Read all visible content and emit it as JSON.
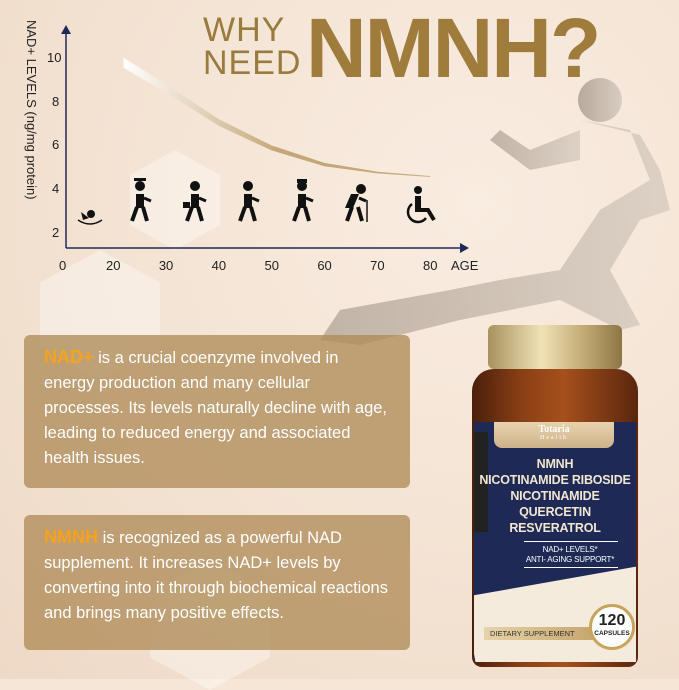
{
  "title": {
    "line1": "WHY",
    "line2": "NEED",
    "highlight": "NMNH?"
  },
  "chart_data": {
    "type": "line",
    "ylabel": "NAD+ LEVELS (ng/mg protein)",
    "xlabel": "AGE",
    "x_ticks": [
      "0",
      "20",
      "30",
      "40",
      "50",
      "60",
      "70",
      "80"
    ],
    "y_ticks": [
      "10",
      "8",
      "6",
      "4",
      "2"
    ],
    "xlim": [
      0,
      80
    ],
    "ylim": [
      1.3,
      11
    ],
    "x": [
      22,
      30,
      40,
      50,
      60,
      70,
      80
    ],
    "y": [
      10,
      8.8,
      7.2,
      6,
      5.2,
      4.8,
      4.6
    ],
    "grid": false,
    "icons": [
      "baby-icon",
      "graduate-icon",
      "businessman-briefcase-icon",
      "businessman-icon",
      "elderly-man-hat-icon",
      "elderly-cane-icon",
      "wheelchair-icon"
    ]
  },
  "box1": {
    "highlight": "NAD+",
    "text": " is a crucial coenzyme involved in energy production and many cellular processes. Its levels naturally decline with age, leading to reduced energy and associated health issues."
  },
  "box2": {
    "highlight": "NMNH",
    "text": " is recognized as a powerful NAD supplement. It increases NAD+ levels by converting into it through biochemical reactions and brings many positive effects."
  },
  "bottle": {
    "brand": "Totaria",
    "brand_sub": "Health",
    "ingredients": [
      "NMNH",
      "NICOTINAMIDE RIBOSIDE",
      "NICOTINAMIDE",
      "QUERCETIN",
      "RESVERATROL"
    ],
    "claims": [
      "NAD+ LEVELS*",
      "ANTI- AGING SUPPORT*"
    ],
    "type": "DIETARY SUPPLEMENT",
    "count": "120",
    "count_unit": "CAPSULES"
  },
  "colors": {
    "gold": "#a07c3c",
    "highlight": "#f7a21b",
    "box": "#b08c58",
    "label_navy": "#1e2a55"
  }
}
